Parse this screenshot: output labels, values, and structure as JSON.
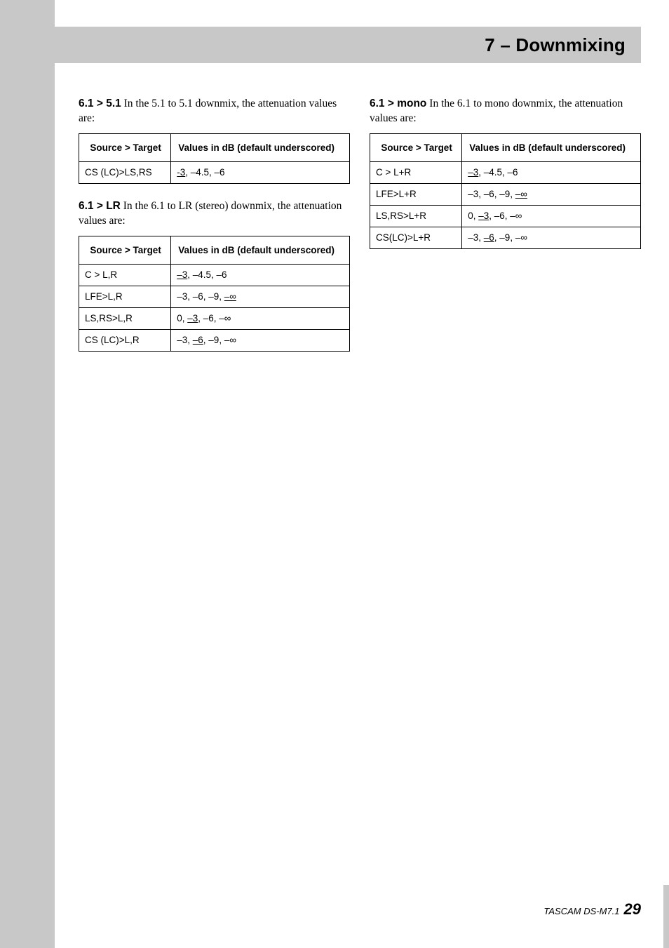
{
  "chapter_title": "7 – Downmixing",
  "left_col": {
    "s1": {
      "runin": "6.1 > 5.1",
      "rest": " In the 5.1 to 5.1 downmix, the attenuation values are:",
      "table": {
        "h1": "Source > Target",
        "h2": "Values in dB (default underscored)",
        "rows": [
          {
            "src": "CS (LC)>LS,RS",
            "pre": "",
            "ud": "-3",
            "post": ", –4.5, –6"
          }
        ]
      }
    },
    "s2": {
      "runin": "6.1 > LR",
      "rest": " In the 6.1 to LR (stereo) downmix, the attenuation values are:",
      "table": {
        "h1": "Source > Target",
        "h2": "Values in dB (default underscored)",
        "rows": [
          {
            "src": "C > L,R",
            "pre": "",
            "ud": "–3",
            "post": ", –4.5, –6"
          },
          {
            "src": "LFE>L,R",
            "pre": "–3, –6, –9, ",
            "ud": "–∞",
            "post": ""
          },
          {
            "src": "LS,RS>L,R",
            "pre": "0, ",
            "ud": "–3",
            "post": ", –6, –∞"
          },
          {
            "src": "CS (LC)>L,R",
            "pre": "–3, ",
            "ud": "–6",
            "post": ", –9, –∞"
          }
        ]
      }
    }
  },
  "right_col": {
    "s1": {
      "runin": "6.1 > mono",
      "rest": " In the 6.1 to mono downmix, the attenuation values are:",
      "table": {
        "h1": "Source > Target",
        "h2": "Values in dB (default underscored)",
        "rows": [
          {
            "src": "C > L+R",
            "pre": "",
            "ud": "–3",
            "post": ", –4.5, –6"
          },
          {
            "src": "LFE>L+R",
            "pre": "–3, –6, –9, ",
            "ud": "–∞",
            "post": ""
          },
          {
            "src": "LS,RS>L+R",
            "pre": "0, ",
            "ud": "–3",
            "post": ", –6, –∞"
          },
          {
            "src": "CS(LC)>L+R",
            "pre": "–3, ",
            "ud": "–6",
            "post": ", –9, –∞"
          }
        ]
      }
    }
  },
  "footer": {
    "model": "TASCAM DS-M7.1",
    "page": "29"
  }
}
